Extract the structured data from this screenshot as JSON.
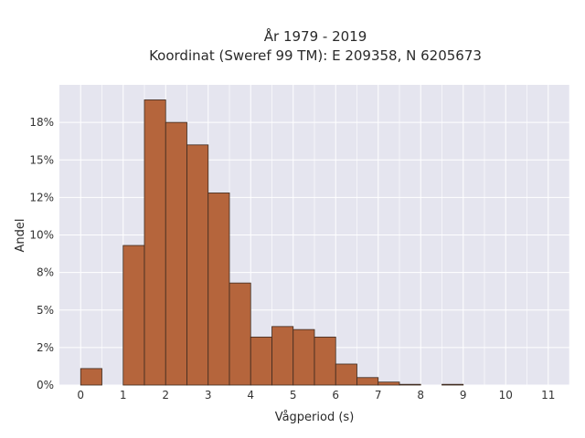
{
  "chart_data": {
    "type": "bar",
    "title_line1": "År 1979 - 2019",
    "title_line2": "Koordinat (Sweref 99 TM): E 209358, N 6205673",
    "xlabel": "Vågperiod (s)",
    "ylabel": "Andel",
    "xlim": [
      -0.5,
      11.5
    ],
    "ylim": [
      0,
      0.2
    ],
    "xticks": [
      0,
      1,
      2,
      3,
      4,
      5,
      6,
      7,
      8,
      9,
      10,
      11
    ],
    "xtick_labels": [
      "0",
      "1",
      "2",
      "3",
      "4",
      "5",
      "6",
      "7",
      "8",
      "9",
      "10",
      "11"
    ],
    "yticks": [
      0,
      0.025,
      0.05,
      0.075,
      0.1,
      0.125,
      0.15,
      0.175
    ],
    "ytick_labels": [
      "0%",
      "2%",
      "5%",
      "8%",
      "10%",
      "12%",
      "15%",
      "18%"
    ],
    "bin_width": 0.5,
    "bins": [
      {
        "x0": 0.0,
        "value": 0.011
      },
      {
        "x0": 0.5,
        "value": 0.0
      },
      {
        "x0": 1.0,
        "value": 0.093
      },
      {
        "x0": 1.5,
        "value": 0.19
      },
      {
        "x0": 2.0,
        "value": 0.175
      },
      {
        "x0": 2.5,
        "value": 0.16
      },
      {
        "x0": 3.0,
        "value": 0.128
      },
      {
        "x0": 3.5,
        "value": 0.068
      },
      {
        "x0": 4.0,
        "value": 0.032
      },
      {
        "x0": 4.5,
        "value": 0.039
      },
      {
        "x0": 5.0,
        "value": 0.037
      },
      {
        "x0": 5.5,
        "value": 0.032
      },
      {
        "x0": 6.0,
        "value": 0.014
      },
      {
        "x0": 6.5,
        "value": 0.005
      },
      {
        "x0": 7.0,
        "value": 0.002
      },
      {
        "x0": 7.5,
        "value": 0.0005
      },
      {
        "x0": 8.0,
        "value": 0.0
      },
      {
        "x0": 8.5,
        "value": 0.0005
      }
    ],
    "grid": true,
    "colors": {
      "bar_fill": "#b5653c",
      "bar_edge": "#3d2a1f",
      "plot_background": "#e5e5ef",
      "grid": "#ffffff"
    }
  }
}
